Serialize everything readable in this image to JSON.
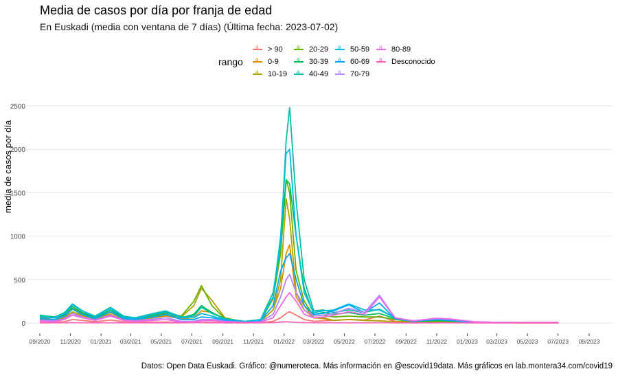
{
  "chart_data": {
    "type": "line",
    "title": "Media de casos por día por franja de edad",
    "subtitle": "En Euskadi (media con ventana de 7 días)  (Última fecha: 2023-07-02)",
    "xlabel": "",
    "ylabel": "media de casos por día",
    "caption": "Datos: Open Data Euskadi. Gráfico: @numeroteca. Más información en @escovid19data.  Más gráficos en lab.montera34.com/covid19",
    "legend_title": "rango",
    "legend_position": "top",
    "grid": true,
    "xlim": [
      "2020-09-01",
      "2023-09-01"
    ],
    "ylim": [
      0,
      2500
    ],
    "y_ticks": [
      0,
      500,
      1000,
      1500,
      2000,
      2500
    ],
    "x_ticks": [
      "09/2020",
      "11/2020",
      "01/2021",
      "03/2021",
      "05/2021",
      "07/2021",
      "09/2021",
      "11/2021",
      "01/2022",
      "03/2022",
      "05/2022",
      "07/2022",
      "09/2022",
      "11/2022",
      "01/2023",
      "03/2023",
      "05/2023",
      "07/2023",
      "09/2023"
    ],
    "x": [
      "2020-09-01",
      "2020-10-01",
      "2020-10-20",
      "2020-11-05",
      "2020-11-25",
      "2020-12-20",
      "2021-01-20",
      "2021-02-15",
      "2021-03-10",
      "2021-04-15",
      "2021-05-10",
      "2021-06-10",
      "2021-07-05",
      "2021-07-20",
      "2021-08-10",
      "2021-09-05",
      "2021-10-15",
      "2021-11-15",
      "2021-12-10",
      "2021-12-25",
      "2022-01-05",
      "2022-01-12",
      "2022-01-25",
      "2022-02-10",
      "2022-03-01",
      "2022-03-20",
      "2022-04-10",
      "2022-05-10",
      "2022-06-10",
      "2022-07-10",
      "2022-08-10",
      "2022-09-15",
      "2022-11-01",
      "2022-12-01",
      "2023-01-15",
      "2023-03-01",
      "2023-05-01",
      "2023-07-02"
    ],
    "series": [
      {
        "name": "> 90",
        "color": "#F8766D",
        "values": [
          10,
          8,
          15,
          40,
          30,
          15,
          35,
          15,
          10,
          10,
          12,
          5,
          4,
          8,
          10,
          6,
          3,
          4,
          20,
          60,
          110,
          130,
          90,
          40,
          20,
          25,
          30,
          40,
          35,
          80,
          20,
          10,
          20,
          15,
          5,
          3,
          3,
          3
        ]
      },
      {
        "name": "0-9",
        "color": "#DB8E00",
        "values": [
          40,
          30,
          60,
          110,
          80,
          40,
          100,
          40,
          35,
          60,
          80,
          50,
          60,
          140,
          120,
          50,
          10,
          20,
          150,
          400,
          800,
          900,
          300,
          150,
          60,
          50,
          30,
          40,
          30,
          25,
          15,
          10,
          12,
          10,
          4,
          3,
          2,
          2
        ]
      },
      {
        "name": "10-19",
        "color": "#AEA200",
        "values": [
          60,
          40,
          70,
          130,
          90,
          45,
          120,
          50,
          40,
          70,
          90,
          70,
          200,
          400,
          260,
          60,
          10,
          20,
          150,
          500,
          1430,
          1200,
          350,
          200,
          60,
          60,
          30,
          40,
          30,
          25,
          15,
          10,
          12,
          10,
          4,
          3,
          2,
          2
        ]
      },
      {
        "name": "20-29",
        "color": "#64B200",
        "values": [
          90,
          60,
          90,
          170,
          110,
          55,
          130,
          55,
          40,
          80,
          110,
          80,
          250,
          430,
          200,
          50,
          15,
          25,
          280,
          800,
          1650,
          1500,
          600,
          250,
          80,
          90,
          70,
          80,
          70,
          70,
          40,
          15,
          20,
          15,
          6,
          5,
          3,
          3
        ]
      },
      {
        "name": "30-39",
        "color": "#00BD5C",
        "values": [
          80,
          60,
          100,
          190,
          120,
          60,
          150,
          60,
          50,
          90,
          120,
          60,
          100,
          200,
          120,
          45,
          15,
          30,
          300,
          900,
          1650,
          1600,
          1000,
          400,
          100,
          120,
          100,
          120,
          90,
          110,
          50,
          20,
          30,
          25,
          8,
          6,
          4,
          4
        ]
      },
      {
        "name": "40-49",
        "color": "#00C1A7",
        "values": [
          90,
          70,
          120,
          220,
          140,
          80,
          180,
          80,
          60,
          110,
          140,
          70,
          80,
          180,
          110,
          50,
          20,
          40,
          350,
          900,
          2100,
          2480,
          1400,
          500,
          140,
          150,
          120,
          150,
          120,
          160,
          60,
          20,
          40,
          30,
          10,
          8,
          5,
          5
        ]
      },
      {
        "name": "50-59",
        "color": "#00BADE",
        "values": [
          70,
          60,
          110,
          210,
          140,
          70,
          170,
          70,
          50,
          100,
          130,
          60,
          60,
          110,
          80,
          40,
          15,
          35,
          300,
          1000,
          1950,
          2000,
          1000,
          350,
          120,
          140,
          150,
          220,
          150,
          150,
          60,
          20,
          40,
          30,
          10,
          8,
          5,
          5
        ]
      },
      {
        "name": "60-69",
        "color": "#00A6FF",
        "values": [
          50,
          40,
          80,
          160,
          100,
          50,
          130,
          50,
          40,
          70,
          100,
          40,
          40,
          70,
          60,
          30,
          10,
          25,
          200,
          600,
          750,
          800,
          500,
          200,
          100,
          110,
          140,
          210,
          120,
          230,
          50,
          20,
          40,
          30,
          10,
          8,
          5,
          5
        ]
      },
      {
        "name": "70-79",
        "color": "#B385FF",
        "values": [
          30,
          25,
          50,
          110,
          70,
          35,
          90,
          35,
          25,
          45,
          60,
          20,
          20,
          40,
          40,
          20,
          8,
          15,
          100,
          300,
          500,
          560,
          350,
          150,
          80,
          90,
          110,
          170,
          120,
          320,
          60,
          25,
          50,
          40,
          15,
          8,
          6,
          6
        ]
      },
      {
        "name": "80-89",
        "color": "#EF67EB",
        "values": [
          20,
          15,
          40,
          90,
          60,
          30,
          80,
          30,
          20,
          30,
          40,
          10,
          10,
          25,
          30,
          15,
          6,
          10,
          60,
          200,
          300,
          350,
          250,
          100,
          60,
          70,
          90,
          130,
          100,
          300,
          60,
          25,
          55,
          45,
          15,
          8,
          6,
          6
        ]
      },
      {
        "name": "Desconocido",
        "color": "#FF63B6",
        "values": [
          2,
          2,
          3,
          4,
          3,
          2,
          3,
          2,
          2,
          2,
          2,
          2,
          3,
          5,
          3,
          2,
          1,
          2,
          5,
          10,
          15,
          12,
          8,
          5,
          3,
          3,
          3,
          3,
          3,
          3,
          2,
          1,
          2,
          2,
          1,
          1,
          1,
          1
        ]
      }
    ]
  }
}
